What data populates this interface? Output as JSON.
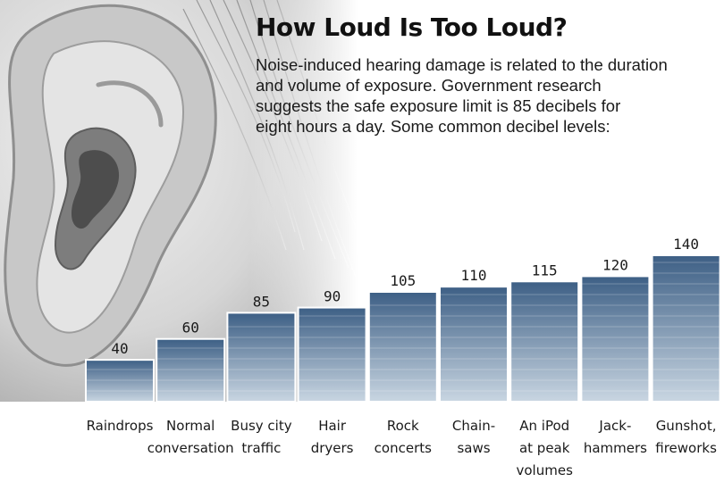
{
  "chart_data": {
    "type": "bar",
    "title": "How Loud Is Too Loud?",
    "subtitle_lines": [
      "Noise-induced hearing damage is related to the duration",
      "and volume of exposure. Government research",
      "suggests the safe exposure limit is 85 decibels for",
      "eight hours a day. Some common decibel levels:"
    ],
    "categories": [
      [
        "Raindrops"
      ],
      [
        "Normal",
        "conversation"
      ],
      [
        "Busy city",
        "traffic"
      ],
      [
        "Hair",
        "dryers"
      ],
      [
        "Rock",
        "concerts"
      ],
      [
        "Chain-",
        "saws"
      ],
      [
        "An iPod",
        "at peak",
        "volumes"
      ],
      [
        "Jack-",
        "hammers"
      ],
      [
        "Gunshot,",
        "fireworks"
      ]
    ],
    "values": [
      40,
      60,
      85,
      90,
      105,
      110,
      115,
      120,
      140
    ],
    "value_labels": [
      "40",
      "60",
      "85",
      "90",
      "105",
      "110",
      "115",
      "120",
      "140"
    ],
    "bar_color_top": "#3d5f85",
    "bar_color_bottom": "#c9d6e2",
    "xlabel": "",
    "ylabel": ""
  }
}
